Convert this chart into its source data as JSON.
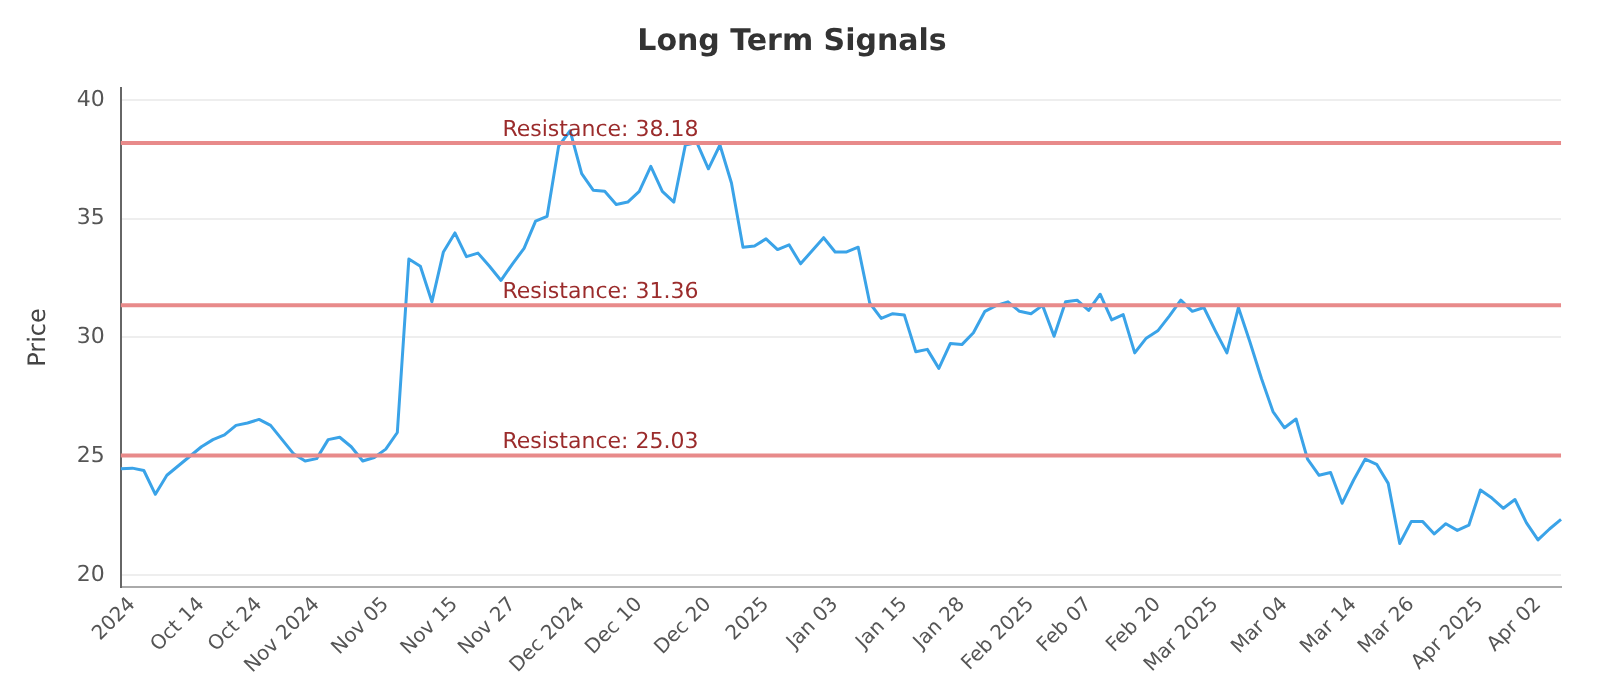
{
  "chart_data": {
    "type": "line",
    "title": "Long Term Signals",
    "ylabel": "Price",
    "categories": [
      null,
      "2024",
      null,
      null,
      null,
      null,
      null,
      "Oct 14",
      null,
      null,
      null,
      null,
      "Oct 24",
      null,
      null,
      null,
      null,
      "Nov 2024",
      null,
      null,
      null,
      null,
      null,
      "Nov 05",
      null,
      null,
      null,
      null,
      null,
      "Nov 15",
      null,
      null,
      null,
      null,
      "Nov 27",
      null,
      null,
      null,
      null,
      null,
      "Dec 2024",
      null,
      null,
      null,
      null,
      "Dec 10",
      null,
      null,
      null,
      null,
      null,
      "Dec 20",
      null,
      null,
      null,
      null,
      "2025",
      null,
      null,
      null,
      null,
      null,
      "Jan 03",
      null,
      null,
      null,
      null,
      null,
      "Jan 15",
      null,
      null,
      null,
      null,
      "Jan 28",
      null,
      null,
      null,
      null,
      null,
      "Feb 2025",
      null,
      null,
      null,
      null,
      "Feb 07",
      null,
      null,
      null,
      null,
      null,
      "Feb 20",
      null,
      null,
      null,
      null,
      "Mar 2025",
      null,
      null,
      null,
      null,
      null,
      "Mar 04",
      null,
      null,
      null,
      null,
      null,
      "Mar 14",
      null,
      null,
      null,
      null,
      "Mar 26",
      null,
      null,
      null,
      null,
      null,
      "Apr 2025",
      null,
      null,
      null,
      null,
      "Apr 02",
      null,
      null
    ],
    "series": [
      {
        "color": "#3aa3e8",
        "values": [
          24.47,
          24.5,
          24.4,
          23.4,
          24.2,
          24.6,
          25.0,
          25.4,
          25.7,
          25.9,
          26.3,
          26.4,
          26.55,
          26.3,
          25.7,
          25.1,
          24.8,
          24.9,
          25.7,
          25.8,
          25.4,
          24.8,
          24.95,
          25.3,
          26.0,
          33.3,
          33.0,
          31.5,
          33.6,
          34.4,
          33.4,
          33.55,
          33.0,
          32.4,
          33.1,
          33.75,
          34.9,
          35.1,
          38.05,
          38.7,
          36.9,
          36.2,
          36.15,
          35.6,
          35.7,
          36.15,
          37.2,
          36.15,
          35.7,
          38.1,
          38.2,
          37.1,
          38.1,
          36.5,
          33.8,
          33.85,
          34.15,
          33.7,
          33.9,
          33.1,
          33.65,
          34.2,
          33.6,
          33.6,
          33.8,
          31.45,
          30.8,
          31.0,
          30.95,
          29.4,
          29.5,
          28.7,
          29.75,
          29.7,
          30.2,
          31.1,
          31.35,
          31.5,
          31.1,
          31.0,
          31.35,
          30.05,
          31.5,
          31.57,
          31.14,
          31.82,
          30.74,
          30.96,
          29.35,
          29.97,
          30.28,
          30.9,
          31.57,
          31.1,
          31.26,
          30.28,
          29.35,
          31.26,
          29.81,
          28.27,
          26.88,
          26.2,
          26.57,
          24.88,
          24.2,
          24.32,
          23.02,
          24.0,
          24.88,
          24.66,
          23.86,
          21.33,
          22.25,
          22.25,
          21.73,
          22.16,
          21.88,
          22.1,
          23.58,
          23.24,
          22.81,
          23.18,
          22.2,
          21.48,
          21.94,
          22.34
        ]
      }
    ],
    "ylim": [
      19.5,
      40.5
    ],
    "yticks": [
      20,
      25,
      30,
      35,
      40
    ],
    "grid": "y",
    "marker": "none",
    "line_style": "solid",
    "ref_lines": [
      {
        "axis": "y",
        "value": 38.18,
        "label": "Resistance: 38.18",
        "color": "#e88a8a"
      },
      {
        "axis": "y",
        "value": 31.36,
        "label": "Resistance: 31.36",
        "color": "#e88a8a"
      },
      {
        "axis": "y",
        "value": 25.03,
        "label": "Resistance: 25.03",
        "color": "#e88a8a"
      }
    ]
  }
}
